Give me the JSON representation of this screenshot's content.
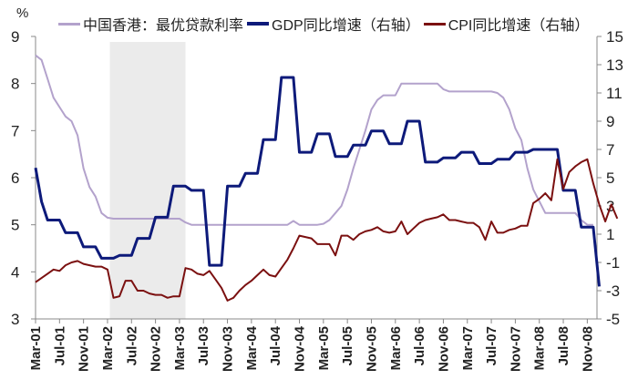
{
  "chart_data": {
    "type": "line",
    "title": "",
    "left_axis": {
      "unit": "%",
      "min": 3,
      "max": 9,
      "ticks": [
        3,
        4,
        5,
        6,
        7,
        8,
        9
      ]
    },
    "right_axis": {
      "min": -5,
      "max": 15,
      "ticks": [
        -5,
        -3,
        -1,
        1,
        3,
        5,
        7,
        9,
        11,
        13,
        15
      ]
    },
    "x_tick_labels": [
      "Mar-01",
      "Jul-01",
      "Nov-01",
      "Mar-02",
      "Jul-02",
      "Nov-02",
      "Mar-03",
      "Jul-03",
      "Nov-03",
      "Mar-04",
      "Jul-04",
      "Nov-04",
      "Mar-05",
      "Jul-05",
      "Nov-05",
      "Mar-06",
      "Jul-06",
      "Nov-06",
      "Mar-07",
      "Jul-07",
      "Nov-07",
      "Mar-08",
      "Jul-08",
      "Nov-08"
    ],
    "shaded_region": {
      "from_month": 13,
      "to_month": 25,
      "color": "#ebebeb"
    },
    "legend_position": "top",
    "series": [
      {
        "name": "中国香港：最优贷款利率",
        "axis": "left",
        "color": "#b3a2cc",
        "width": 2,
        "points": [
          [
            0,
            8.6
          ],
          [
            1,
            8.5
          ],
          [
            2,
            8.1
          ],
          [
            3,
            7.7
          ],
          [
            4,
            7.5
          ],
          [
            5,
            7.3
          ],
          [
            6,
            7.2
          ],
          [
            7,
            6.9
          ],
          [
            8,
            6.2
          ],
          [
            9,
            5.8
          ],
          [
            10,
            5.6
          ],
          [
            11,
            5.25
          ],
          [
            12,
            5.15
          ],
          [
            13,
            5.13
          ],
          [
            14,
            5.13
          ],
          [
            20,
            5.13
          ],
          [
            22,
            5.13
          ],
          [
            24,
            5.13
          ],
          [
            25,
            5.05
          ],
          [
            26,
            5.0
          ],
          [
            27,
            5.0
          ],
          [
            40,
            5.0
          ],
          [
            42,
            5.0
          ],
          [
            43,
            5.08
          ],
          [
            44,
            5.0
          ],
          [
            45,
            5.0
          ],
          [
            47,
            5.0
          ],
          [
            48,
            5.02
          ],
          [
            49,
            5.1
          ],
          [
            50,
            5.25
          ],
          [
            51,
            5.4
          ],
          [
            52,
            5.75
          ],
          [
            53,
            6.2
          ],
          [
            54,
            6.6
          ],
          [
            55,
            7.0
          ],
          [
            56,
            7.45
          ],
          [
            57,
            7.65
          ],
          [
            58,
            7.75
          ],
          [
            59,
            7.75
          ],
          [
            60,
            7.75
          ],
          [
            61,
            8.0
          ],
          [
            63,
            8.0
          ],
          [
            65,
            8.0
          ],
          [
            67,
            8.0
          ],
          [
            68,
            7.88
          ],
          [
            69,
            7.83
          ],
          [
            70,
            7.83
          ],
          [
            75,
            7.83
          ],
          [
            76,
            7.83
          ],
          [
            77,
            7.8
          ],
          [
            78,
            7.7
          ],
          [
            79,
            7.45
          ],
          [
            80,
            7.05
          ],
          [
            81,
            6.8
          ],
          [
            82,
            6.2
          ],
          [
            83,
            5.75
          ],
          [
            84,
            5.5
          ],
          [
            85,
            5.25
          ],
          [
            86,
            5.25
          ],
          [
            89,
            5.25
          ],
          [
            90,
            5.25
          ],
          [
            91,
            5.1
          ],
          [
            92,
            5.0
          ],
          [
            93,
            5.0
          ]
        ]
      },
      {
        "name": "GDP同比增速（右轴）",
        "axis": "right",
        "color": "#0d1a7a",
        "width": 3,
        "points": [
          [
            0,
            5.7
          ],
          [
            1,
            3.3
          ],
          [
            2,
            2.0
          ],
          [
            3,
            2.0
          ],
          [
            4,
            2.0
          ],
          [
            5,
            1.1
          ],
          [
            6,
            1.1
          ],
          [
            7,
            1.1
          ],
          [
            8,
            0.1
          ],
          [
            9,
            0.1
          ],
          [
            10,
            0.1
          ],
          [
            11,
            -0.7
          ],
          [
            12,
            -0.7
          ],
          [
            13,
            -0.7
          ],
          [
            14,
            -0.5
          ],
          [
            15,
            -0.5
          ],
          [
            16,
            -0.5
          ],
          [
            17,
            0.7
          ],
          [
            18,
            0.7
          ],
          [
            19,
            0.7
          ],
          [
            20,
            2.2
          ],
          [
            21,
            2.2
          ],
          [
            22,
            2.2
          ],
          [
            23,
            4.4
          ],
          [
            24,
            4.4
          ],
          [
            25,
            4.4
          ],
          [
            26,
            4.1
          ],
          [
            27,
            4.1
          ],
          [
            28,
            4.1
          ],
          [
            29,
            -1.2
          ],
          [
            30,
            -1.2
          ],
          [
            31,
            -1.2
          ],
          [
            32,
            4.4
          ],
          [
            33,
            4.4
          ],
          [
            34,
            4.4
          ],
          [
            35,
            5.3
          ],
          [
            36,
            5.3
          ],
          [
            37,
            5.3
          ],
          [
            38,
            7.7
          ],
          [
            39,
            7.7
          ],
          [
            40,
            7.7
          ],
          [
            41,
            12.1
          ],
          [
            42,
            12.1
          ],
          [
            43,
            12.1
          ],
          [
            44,
            6.8
          ],
          [
            45,
            6.8
          ],
          [
            46,
            6.8
          ],
          [
            47,
            8.1
          ],
          [
            48,
            8.1
          ],
          [
            49,
            8.1
          ],
          [
            50,
            6.5
          ],
          [
            51,
            6.5
          ],
          [
            52,
            6.5
          ],
          [
            53,
            7.3
          ],
          [
            54,
            7.3
          ],
          [
            55,
            7.3
          ],
          [
            56,
            8.3
          ],
          [
            57,
            8.3
          ],
          [
            58,
            8.3
          ],
          [
            59,
            7.4
          ],
          [
            60,
            7.4
          ],
          [
            61,
            7.4
          ],
          [
            62,
            9.0
          ],
          [
            63,
            9.0
          ],
          [
            64,
            9.0
          ],
          [
            65,
            6.1
          ],
          [
            66,
            6.1
          ],
          [
            67,
            6.1
          ],
          [
            68,
            6.4
          ],
          [
            69,
            6.4
          ],
          [
            70,
            6.4
          ],
          [
            71,
            6.8
          ],
          [
            72,
            6.8
          ],
          [
            73,
            6.8
          ],
          [
            74,
            6.0
          ],
          [
            75,
            6.0
          ],
          [
            76,
            6.0
          ],
          [
            77,
            6.3
          ],
          [
            78,
            6.3
          ],
          [
            79,
            6.3
          ],
          [
            80,
            6.8
          ],
          [
            81,
            6.8
          ],
          [
            82,
            6.8
          ],
          [
            83,
            7.0
          ],
          [
            84,
            7.0
          ],
          [
            85,
            7.0
          ],
          [
            86,
            7.0
          ],
          [
            87,
            7.0
          ],
          [
            88,
            4.1
          ],
          [
            89,
            4.1
          ],
          [
            90,
            4.1
          ],
          [
            91,
            1.5
          ],
          [
            92,
            1.5
          ],
          [
            93,
            1.5
          ],
          [
            94,
            -2.7
          ]
        ]
      },
      {
        "name": "CPI同比增速（右轴）",
        "axis": "right",
        "color": "#7b1010",
        "width": 2,
        "points": [
          [
            0,
            -2.4
          ],
          [
            1,
            -2.1
          ],
          [
            2,
            -1.8
          ],
          [
            3,
            -1.5
          ],
          [
            4,
            -1.6
          ],
          [
            5,
            -1.2
          ],
          [
            6,
            -1.0
          ],
          [
            7,
            -0.9
          ],
          [
            8,
            -1.1
          ],
          [
            9,
            -1.2
          ],
          [
            10,
            -1.3
          ],
          [
            11,
            -1.3
          ],
          [
            12,
            -1.5
          ],
          [
            13,
            -3.5
          ],
          [
            14,
            -3.4
          ],
          [
            15,
            -2.3
          ],
          [
            16,
            -2.3
          ],
          [
            17,
            -3.0
          ],
          [
            18,
            -3.0
          ],
          [
            19,
            -3.2
          ],
          [
            20,
            -3.3
          ],
          [
            21,
            -3.3
          ],
          [
            22,
            -3.5
          ],
          [
            23,
            -3.4
          ],
          [
            24,
            -3.4
          ],
          [
            25,
            -1.4
          ],
          [
            26,
            -1.5
          ],
          [
            27,
            -1.8
          ],
          [
            28,
            -1.9
          ],
          [
            29,
            -1.6
          ],
          [
            30,
            -2.2
          ],
          [
            31,
            -2.8
          ],
          [
            32,
            -3.7
          ],
          [
            33,
            -3.5
          ],
          [
            34,
            -3.0
          ],
          [
            35,
            -2.6
          ],
          [
            36,
            -2.3
          ],
          [
            37,
            -1.9
          ],
          [
            38,
            -1.5
          ],
          [
            39,
            -1.9
          ],
          [
            40,
            -2.0
          ],
          [
            41,
            -1.4
          ],
          [
            42,
            -0.8
          ],
          [
            43,
            0.0
          ],
          [
            44,
            0.9
          ],
          [
            45,
            0.8
          ],
          [
            46,
            0.7
          ],
          [
            47,
            0.3
          ],
          [
            48,
            0.3
          ],
          [
            49,
            0.3
          ],
          [
            50,
            -0.5
          ],
          [
            51,
            0.9
          ],
          [
            52,
            0.9
          ],
          [
            53,
            0.6
          ],
          [
            54,
            1.0
          ],
          [
            55,
            1.2
          ],
          [
            56,
            1.3
          ],
          [
            57,
            1.5
          ],
          [
            58,
            1.2
          ],
          [
            59,
            1.1
          ],
          [
            60,
            1.2
          ],
          [
            61,
            1.9
          ],
          [
            62,
            1.0
          ],
          [
            63,
            1.4
          ],
          [
            64,
            1.8
          ],
          [
            65,
            2.0
          ],
          [
            66,
            2.1
          ],
          [
            67,
            2.2
          ],
          [
            68,
            2.4
          ],
          [
            69,
            2.0
          ],
          [
            70,
            2.0
          ],
          [
            71,
            1.9
          ],
          [
            72,
            1.8
          ],
          [
            73,
            1.8
          ],
          [
            74,
            1.5
          ],
          [
            75,
            0.6
          ],
          [
            76,
            1.9
          ],
          [
            77,
            1.1
          ],
          [
            78,
            1.1
          ],
          [
            79,
            1.3
          ],
          [
            80,
            1.4
          ],
          [
            81,
            1.6
          ],
          [
            82,
            1.6
          ],
          [
            83,
            3.2
          ],
          [
            84,
            3.5
          ],
          [
            85,
            3.9
          ],
          [
            86,
            3.4
          ],
          [
            87,
            6.3
          ],
          [
            88,
            4.2
          ],
          [
            89,
            5.4
          ],
          [
            90,
            5.8
          ],
          [
            91,
            6.1
          ],
          [
            92,
            6.3
          ],
          [
            93,
            4.6
          ],
          [
            94,
            3.1
          ],
          [
            95,
            1.9
          ],
          [
            96,
            3.1
          ],
          [
            97,
            2.1
          ]
        ]
      }
    ]
  },
  "legend": {
    "items": [
      {
        "label": "中国香港：最优贷款利率",
        "color": "#b3a2cc"
      },
      {
        "label": "GDP同比增速（右轴）",
        "color": "#0d1a7a"
      },
      {
        "label": "CPI同比增速（右轴）",
        "color": "#7b1010"
      }
    ]
  },
  "left_unit_label": "%"
}
